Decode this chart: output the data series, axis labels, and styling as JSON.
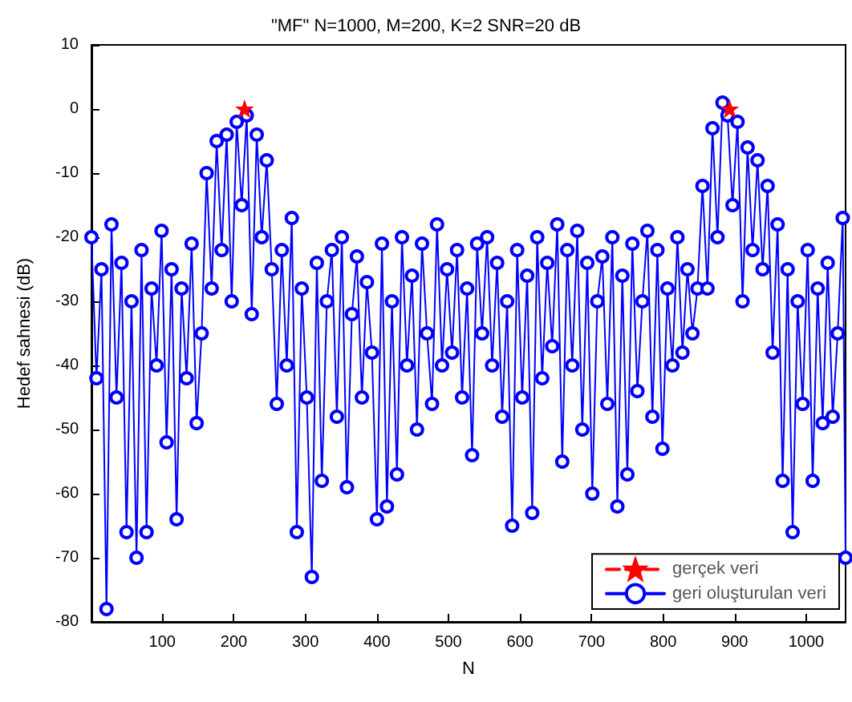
{
  "chart_data": {
    "type": "line",
    "title": "\"MF\" N=1000, M=200, K=2 SNR=20 dB",
    "xlabel": "N",
    "ylabel": "Hedef sahnesi (dB)",
    "xlim": [
      1,
      1055
    ],
    "xticks": [
      100,
      200,
      300,
      400,
      500,
      600,
      700,
      800,
      900,
      1000
    ],
    "ylim": [
      -80,
      10
    ],
    "yticks": [
      -80,
      -70,
      -60,
      -50,
      -40,
      -30,
      -20,
      -10,
      0,
      10
    ],
    "grid": false,
    "legend": "bottom right",
    "series": [
      {
        "name": "gerçek veri",
        "color": "#ff0000",
        "marker": "star",
        "line_style": "dashed",
        "x": [
          215,
          554,
          893
        ],
        "values": [
          0,
          null,
          0
        ]
      },
      {
        "name": "geri oluşturulan veri",
        "color": "#0000ff",
        "marker": "circle",
        "line_style": "solid",
        "x": [
          1,
          8,
          15,
          22,
          29,
          36,
          43,
          50,
          57,
          64,
          71,
          78,
          85,
          92,
          99,
          106,
          113,
          120,
          127,
          134,
          141,
          148,
          155,
          162,
          169,
          176,
          183,
          190,
          197,
          204,
          211,
          218,
          225,
          232,
          239,
          246,
          253,
          260,
          267,
          274,
          281,
          288,
          295,
          302,
          309,
          316,
          323,
          330,
          337,
          344,
          351,
          358,
          365,
          372,
          379,
          386,
          393,
          400,
          407,
          414,
          421,
          428,
          435,
          442,
          449,
          456,
          463,
          470,
          477,
          484,
          491,
          498,
          505,
          512,
          519,
          526,
          533,
          540,
          547,
          554,
          561,
          568,
          575,
          582,
          589,
          596,
          603,
          610,
          617,
          624,
          631,
          638,
          645,
          652,
          659,
          666,
          673,
          680,
          687,
          694,
          701,
          708,
          715,
          722,
          729,
          736,
          743,
          750,
          757,
          764,
          771,
          778,
          785,
          792,
          799,
          806,
          813,
          820,
          827,
          834,
          841,
          848,
          855,
          862,
          869,
          876,
          883,
          890,
          897,
          904,
          911,
          918,
          925,
          932,
          939,
          946,
          953,
          960,
          967,
          974,
          981,
          988,
          995,
          1002,
          1009,
          1016,
          1023,
          1030,
          1037,
          1044,
          1051,
          1055
        ],
        "values": [
          -20,
          -42,
          -25,
          -78,
          -18,
          -45,
          -24,
          -66,
          -30,
          -70,
          -22,
          -66,
          -28,
          -40,
          -19,
          -52,
          -25,
          -64,
          -28,
          -42,
          -21,
          -49,
          -35,
          -10,
          -28,
          -5,
          -22,
          -4,
          -30,
          -2,
          -15,
          -1,
          -32,
          -4,
          -20,
          -8,
          -25,
          -46,
          -22,
          -40,
          -17,
          -66,
          -28,
          -45,
          -73,
          -24,
          -58,
          -30,
          -22,
          -48,
          -20,
          -59,
          -32,
          -23,
          -45,
          -27,
          -38,
          -64,
          -21,
          -62,
          -30,
          -57,
          -20,
          -40,
          -26,
          -50,
          -21,
          -35,
          -46,
          -18,
          -40,
          -25,
          -38,
          -22,
          -45,
          -28,
          -54,
          -21,
          -35,
          -20,
          -40,
          -24,
          -48,
          -30,
          -65,
          -22,
          -45,
          -26,
          -63,
          -20,
          -42,
          -24,
          -37,
          -18,
          -55,
          -22,
          -40,
          -19,
          -50,
          -24,
          -60,
          -30,
          -23,
          -46,
          -20,
          -62,
          -26,
          -57,
          -21,
          -44,
          -30,
          -19,
          -48,
          -22,
          -53,
          -28,
          -40,
          -20,
          -38,
          -25,
          -35,
          -28,
          -12,
          -28,
          -3,
          -20,
          1,
          -1,
          -15,
          -2,
          -30,
          -6,
          -22,
          -8,
          -25,
          -12,
          -38,
          -18,
          -58,
          -25,
          -66,
          -30,
          -46,
          -22,
          -58,
          -28,
          -49,
          -24,
          -48,
          -35,
          -17,
          -70
        ]
      }
    ]
  }
}
